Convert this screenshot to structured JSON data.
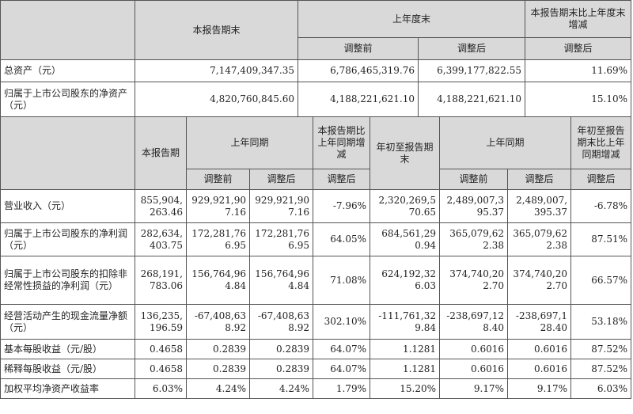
{
  "t1": {
    "h_current": "本报告期末",
    "h_prev_year_end": "上年度末",
    "h_change": "本报告期末比上年度末增减",
    "h_before": "调整前",
    "h_after": "调整后",
    "h_change_after": "调整后",
    "rows": [
      {
        "label": "总资产（元）",
        "current": "7,147,409,347.35",
        "before": "6,786,465,319.76",
        "after": "6,399,177,822.55",
        "change": "11.69%"
      },
      {
        "label": "归属于上市公司股东的净资产（元）",
        "current": "4,820,760,845.60",
        "before": "4,188,221,621.10",
        "after": "4,188,221,621.10",
        "change": "15.10%"
      }
    ]
  },
  "t2": {
    "h_period": "本报告期",
    "h_prev_same": "上年同期",
    "h_period_change": "本报告期比上年同期增减",
    "h_ytd": "年初至报告期末",
    "h_prev_same2": "上年同期",
    "h_ytd_change": "年初至报告期末比上年同期增减",
    "h_before": "调整前",
    "h_after": "调整后",
    "h_period_change_after": "调整后",
    "h_before2": "调整前",
    "h_after2": "调整后",
    "h_ytd_change_after": "调整后",
    "rows": [
      {
        "label": "营业收入（元）",
        "period": "855,904,263.46",
        "prev_before": "929,921,907.16",
        "prev_after": "929,921,907.16",
        "period_change": "-7.96%",
        "ytd": "2,320,269,570.65",
        "ytd_prev_before": "2,489,007,395.37",
        "ytd_prev_after": "2,489,007,395.37",
        "ytd_change": "-6.78%"
      },
      {
        "label": "归属于上市公司股东的净利润（元）",
        "period": "282,634,403.75",
        "prev_before": "172,281,766.95",
        "prev_after": "172,281,766.95",
        "period_change": "64.05%",
        "ytd": "684,561,290.94",
        "ytd_prev_before": "365,079,622.38",
        "ytd_prev_after": "365,079,622.38",
        "ytd_change": "87.51%"
      },
      {
        "label": "归属于上市公司股东的扣除非经常性损益的净利润（元）",
        "period": "268,191,783.06",
        "prev_before": "156,764,964.84",
        "prev_after": "156,764,964.84",
        "period_change": "71.08%",
        "ytd": "624,192,326.03",
        "ytd_prev_before": "374,740,202.70",
        "ytd_prev_after": "374,740,202.70",
        "ytd_change": "66.57%"
      },
      {
        "label": "经营活动产生的现金流量净额（元）",
        "period": "136,235,196.59",
        "prev_before": "-67,408,638.92",
        "prev_after": "-67,408,638.92",
        "period_change": "302.10%",
        "ytd": "-111,761,329.84",
        "ytd_prev_before": "-238,697,128.40",
        "ytd_prev_after": "-238,697,128.40",
        "ytd_change": "53.18%"
      },
      {
        "label": "基本每股收益（元/股）",
        "period": "0.4658",
        "prev_before": "0.2839",
        "prev_after": "0.2839",
        "period_change": "64.07%",
        "ytd": "1.1281",
        "ytd_prev_before": "0.6016",
        "ytd_prev_after": "0.6016",
        "ytd_change": "87.52%"
      },
      {
        "label": "稀释每股收益（元/股）",
        "period": "0.4658",
        "prev_before": "0.2839",
        "prev_after": "0.2839",
        "period_change": "64.07%",
        "ytd": "1.1281",
        "ytd_prev_before": "0.6016",
        "ytd_prev_after": "0.6016",
        "ytd_change": "87.52%"
      },
      {
        "label": "加权平均净资产收益率",
        "period": "6.03%",
        "prev_before": "4.24%",
        "prev_after": "4.24%",
        "period_change": "1.79%",
        "ytd": "15.20%",
        "ytd_prev_before": "9.17%",
        "ytd_prev_after": "9.17%",
        "ytd_change": "6.03%"
      }
    ]
  }
}
